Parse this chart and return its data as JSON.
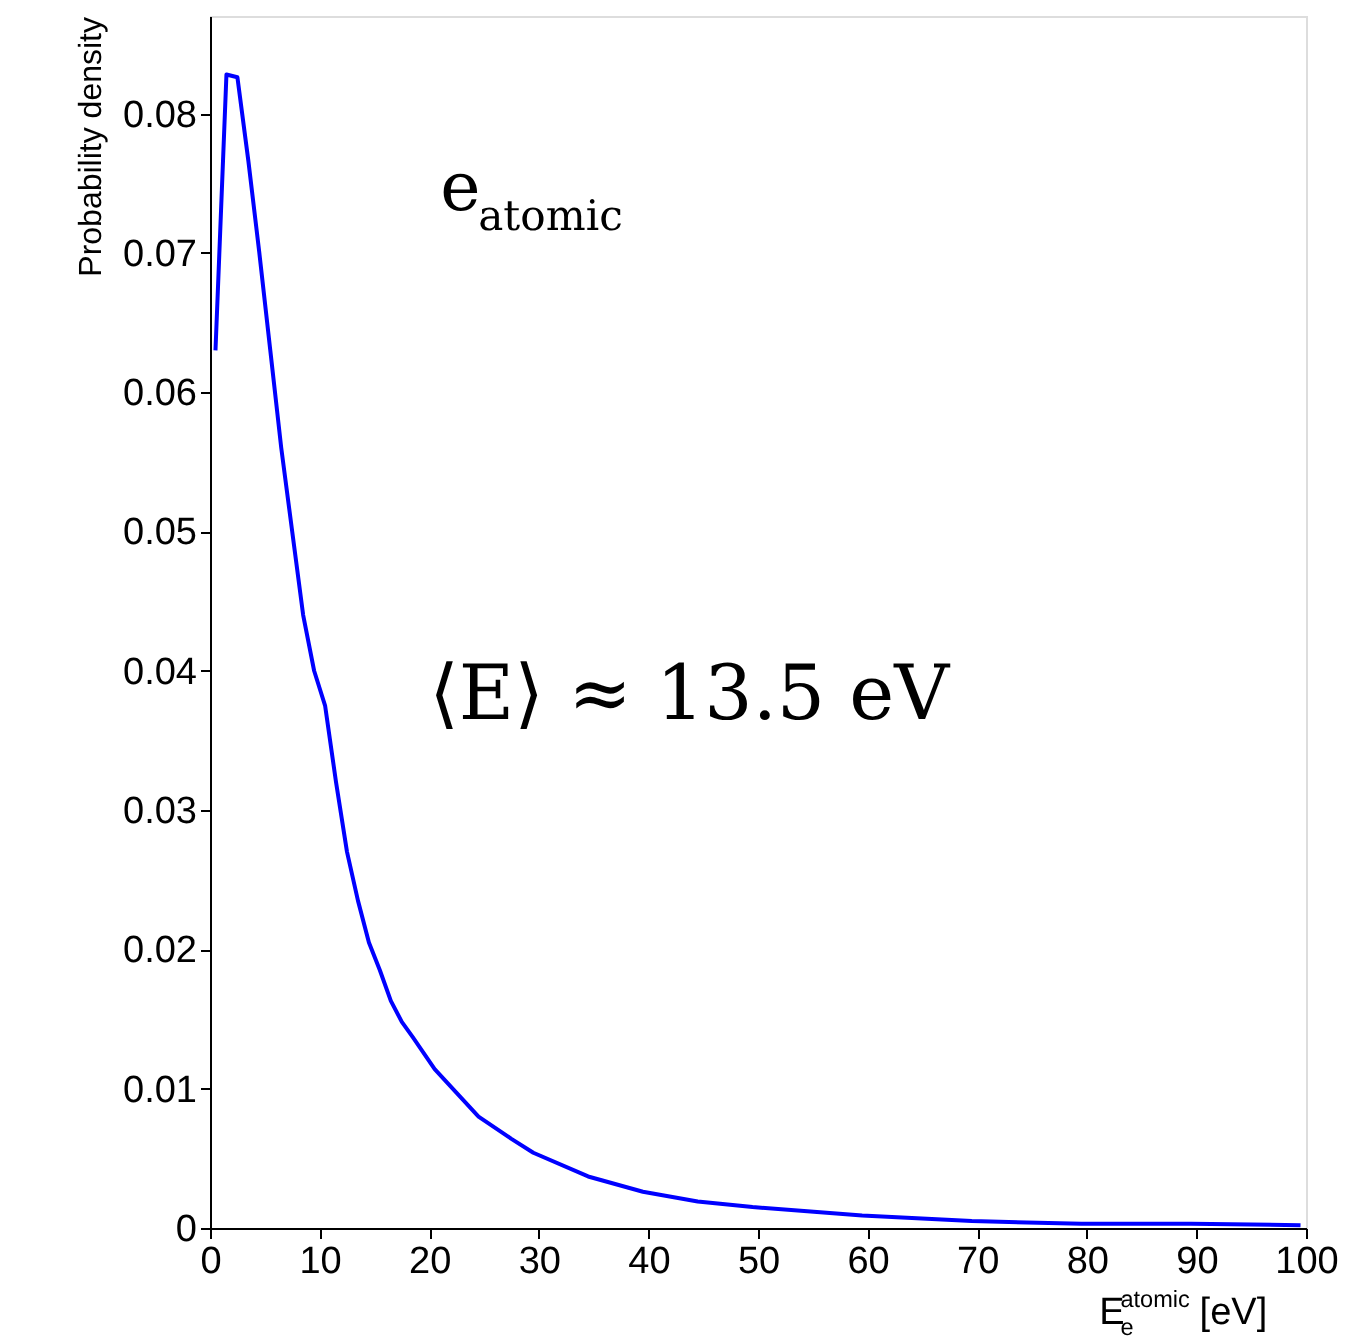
{
  "chart_data": {
    "type": "line",
    "xlabel": "E$^{atomic}$$_{e}$ [eV]",
    "ylabel": "Probability density",
    "annotations": [
      "e$_{atomic}$",
      "⟨E⟩ ≈ 13.5 eV"
    ],
    "x": [
      0.5,
      1.5,
      2.5,
      3.5,
      4.5,
      5.5,
      6.5,
      7.5,
      8.5,
      9.5,
      10.5,
      11.5,
      12.5,
      13.5,
      14.5,
      15.5,
      16.5,
      17.5,
      18.5,
      20.5,
      22.5,
      24.5,
      27.5,
      29.5,
      34.5,
      39.5,
      44.5,
      49.5,
      54.5,
      59.5,
      64.5,
      69.5,
      79.5,
      89.5,
      99.5
    ],
    "series": [
      {
        "color": "#0000ff",
        "values": [
          0.063,
          0.0828,
          0.0826,
          0.0766,
          0.07,
          0.063,
          0.056,
          0.05,
          0.044,
          0.04,
          0.0375,
          0.032,
          0.027,
          0.0235,
          0.0205,
          0.0185,
          0.0163,
          0.0148,
          0.0137,
          0.0114,
          0.0097,
          0.008,
          0.0064,
          0.0054,
          0.0037,
          0.0026,
          0.0019,
          0.0015,
          0.0012,
          0.0009,
          0.0007,
          0.0005,
          0.0003,
          0.0003,
          0.0002
        ]
      }
    ],
    "xlim": [
      0,
      100
    ],
    "ylim": [
      0,
      0.087
    ],
    "xticks": [
      0,
      10,
      20,
      30,
      40,
      50,
      60,
      70,
      80,
      90,
      100
    ],
    "yticks": [
      0,
      0.01,
      0.02,
      0.03,
      0.04,
      0.05,
      0.06,
      0.07,
      0.08
    ],
    "grid": false,
    "marker": "none",
    "line_style": "solid"
  }
}
